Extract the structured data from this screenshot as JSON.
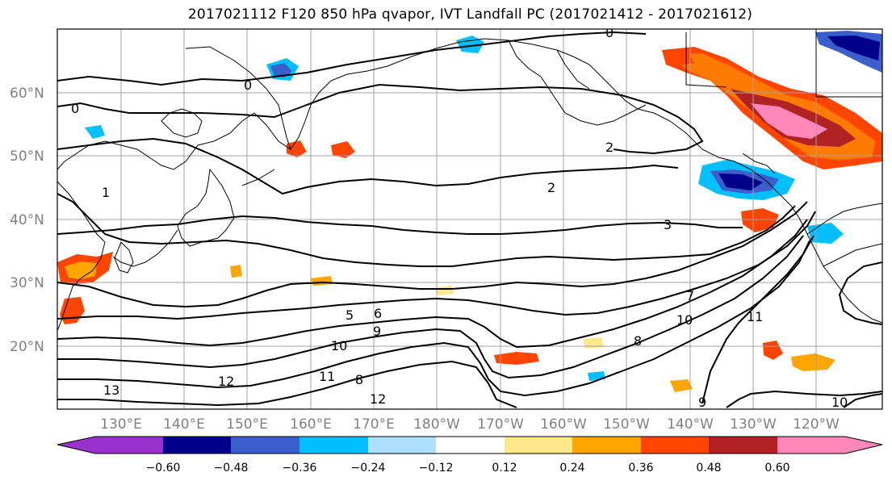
{
  "title": "2017021112 F120 850 hPa qvapor, IVT Landfall PC (2017021412 - 2017021612)",
  "map": {
    "lat_labels": [
      "60°N",
      "50°N",
      "40°N",
      "30°N",
      "20°N"
    ],
    "lon_labels": [
      "130°E",
      "140°E",
      "150°E",
      "160°E",
      "170°E",
      "180°W",
      "170°W",
      "160°W",
      "150°W",
      "140°W",
      "130°W",
      "120°W"
    ],
    "contour_labels": [
      "0",
      "0",
      "0",
      "1",
      "2",
      "2",
      "3",
      "5",
      "6",
      "7",
      "8",
      "9",
      "10",
      "10",
      "11",
      "12",
      "13",
      "12",
      "8",
      "9",
      "11",
      "10"
    ]
  },
  "colorbar": {
    "tick_labels": [
      "−0.60",
      "−0.48",
      "−0.36",
      "−0.24",
      "−0.12",
      "0.12",
      "0.24",
      "0.36",
      "0.48",
      "0.60"
    ],
    "colors": [
      "#9932CC",
      "#00008B",
      "#3A5FCD",
      "#00BFFF",
      "#ADDFFF",
      "#FFFFFF",
      "#FFE88C",
      "#FFA500",
      "#FF4500",
      "#B22222",
      "#FF88B8"
    ]
  }
}
